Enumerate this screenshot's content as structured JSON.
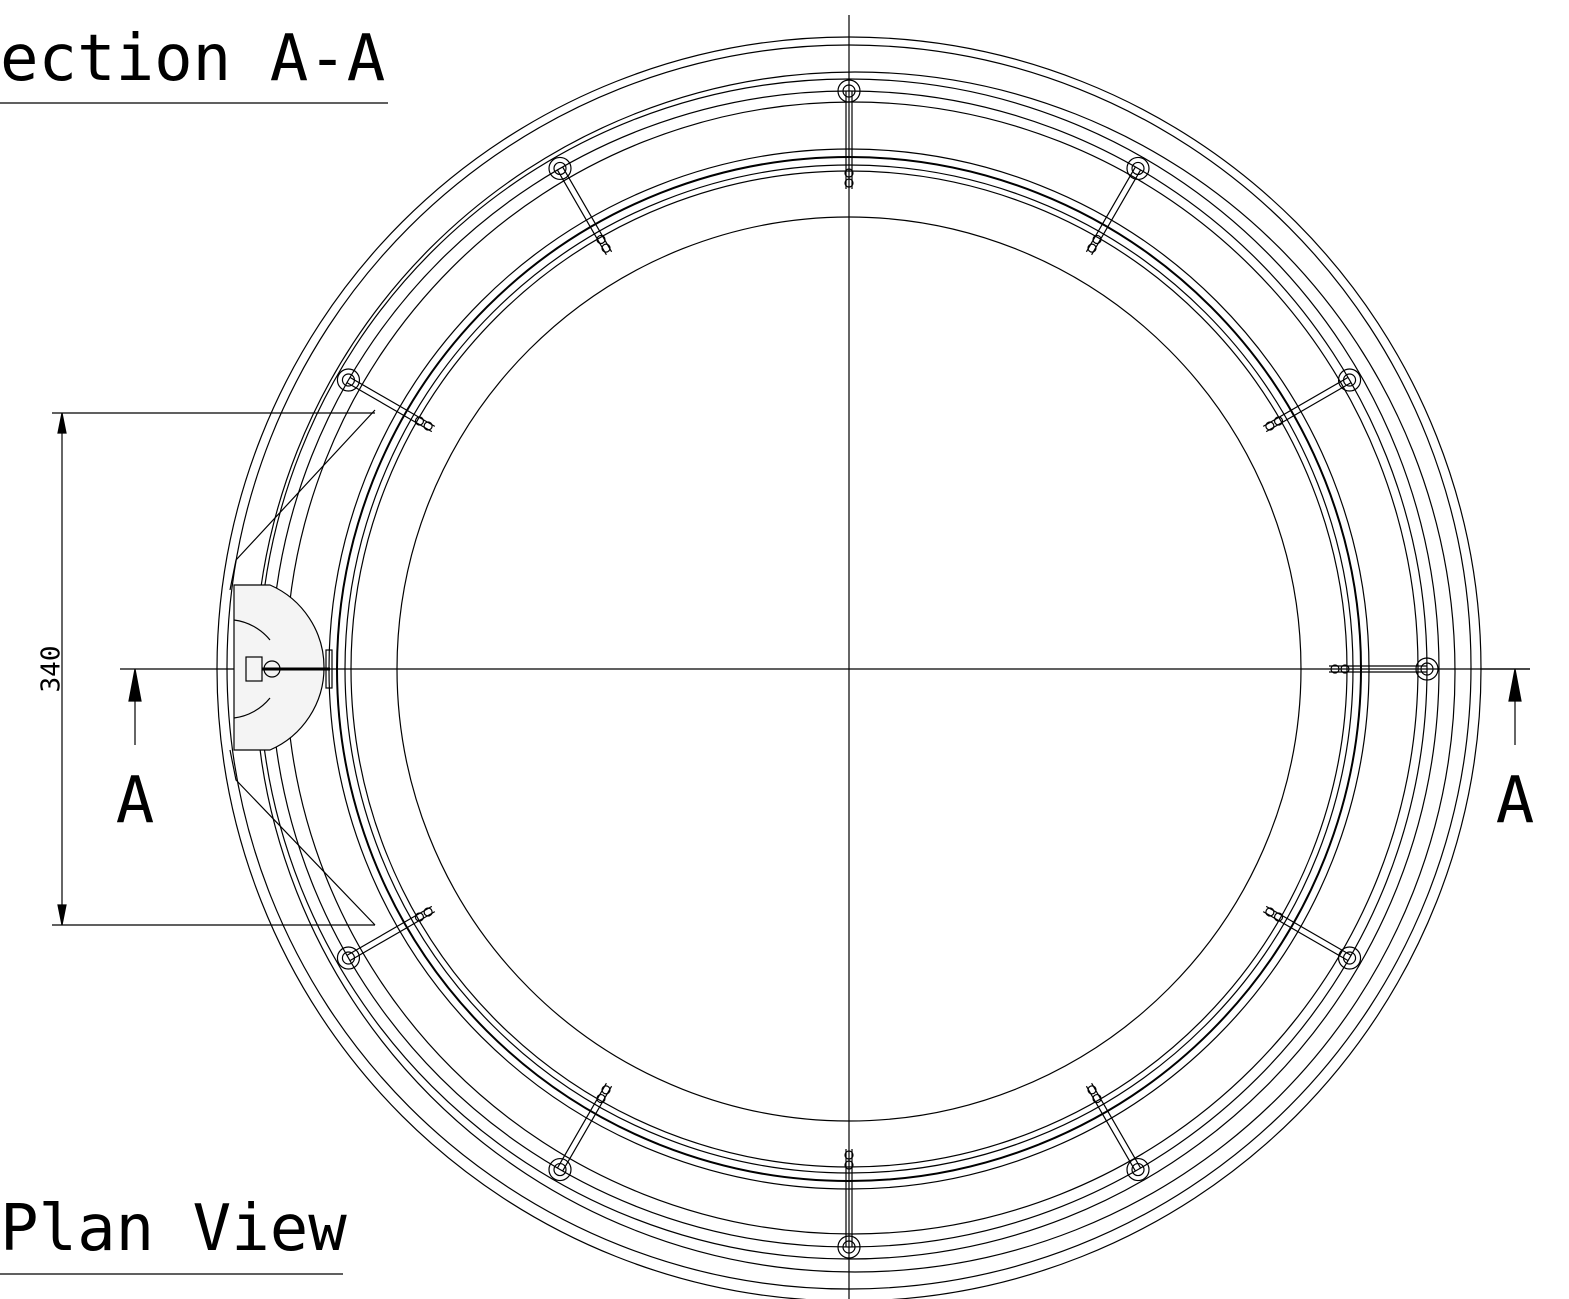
{
  "titles": {
    "section": "ection A-A",
    "plan": "Plan View"
  },
  "dimension": {
    "label": "340"
  },
  "section_marks": {
    "left": "A",
    "right": "A"
  }
}
